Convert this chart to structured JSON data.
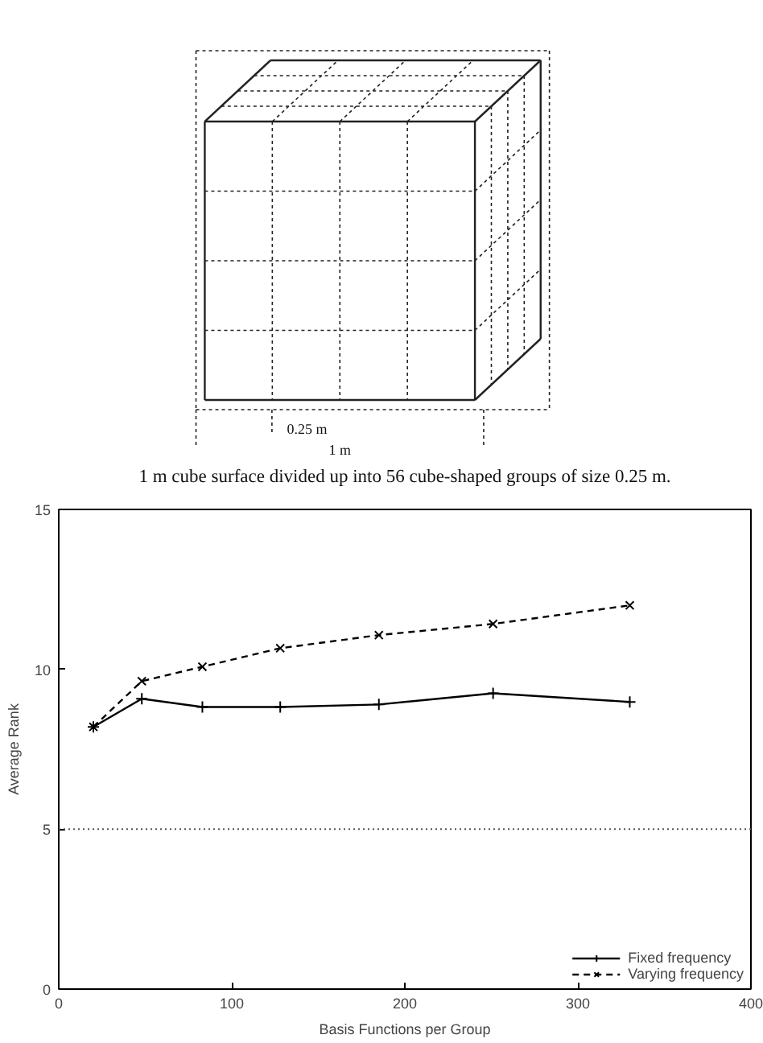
{
  "chart_data": {
    "type": "line",
    "xlabel": "Basis Functions per Group",
    "ylabel": "Average Rank",
    "annotations": [
      "0.25 m",
      "1 m",
      "1 m cube surface divided up into 56 cube-shaped groups of size 0.25 m."
    ],
    "x": [
      20,
      48,
      83,
      128,
      185,
      251,
      330
    ],
    "series": [
      {
        "name": "Fixed frequency",
        "color": "#000000",
        "marker": "cross",
        "line_style": "solid",
        "values": [
          8.2,
          9.08,
          8.82,
          8.82,
          8.9,
          9.25,
          8.98
        ]
      },
      {
        "name": "Varying frequency",
        "color": "#000000",
        "marker": "x",
        "line_style": "dashed",
        "values": [
          8.2,
          9.63,
          10.08,
          10.66,
          11.07,
          11.42,
          12.0
        ]
      }
    ],
    "xlim": [
      0,
      400
    ],
    "xticks": [
      0,
      100,
      200,
      300,
      400
    ],
    "ylim": [
      0,
      15
    ],
    "yticks": [
      0,
      5,
      10,
      15
    ],
    "ref_lines": [
      {
        "axis": "y",
        "value": 5,
        "line_style": "dotted",
        "color": "#555555"
      }
    ],
    "grid": false,
    "legend": "bottom right"
  }
}
